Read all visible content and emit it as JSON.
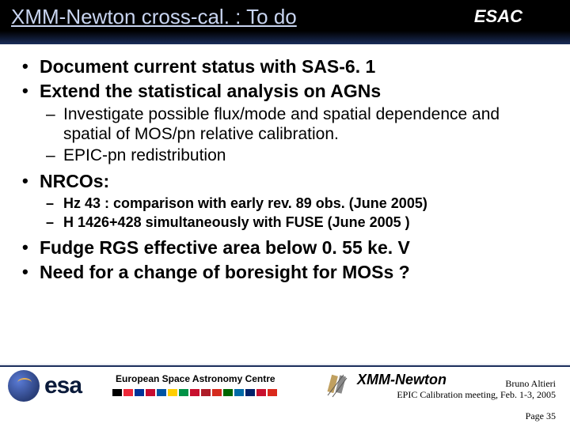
{
  "header": {
    "title": "XMM-Newton cross-cal. : To do",
    "esac": "ESAC"
  },
  "bullets": {
    "b1": "Document current status with SAS-6. 1",
    "b2": "Extend the statistical analysis on AGNs",
    "b2s1": "Investigate possible flux/mode and spatial dependence and spatial of MOS/pn relative calibration.",
    "b2s2": "EPIC-pn redistribution",
    "b3": "NRCOs:",
    "b3s1": "Hz 43 : comparison with early rev. 89 obs. (June 2005)",
    "b3s2": "H 1426+428 simultaneously with FUSE (June 2005 )",
    "b4": "Fudge RGS effective area below 0. 55 ke. V",
    "b5": "Need for a change of boresight for MOSs ?"
  },
  "footer": {
    "esa": "esa",
    "center": "European Space Astronomy Centre",
    "xmm": "XMM-Newton",
    "author": "Bruno Altieri",
    "meeting": "EPIC Calibration meeting, Feb. 1-3, 2005",
    "page": "Page 35"
  },
  "flags": [
    "#000000",
    "#ed2939",
    "#003399",
    "#c60c30",
    "#0055a4",
    "#ffce00",
    "#009246",
    "#c8102e",
    "#ae1c28",
    "#d52b1e",
    "#006600",
    "#006aa7",
    "#012169",
    "#c8102e",
    "#da291c"
  ]
}
